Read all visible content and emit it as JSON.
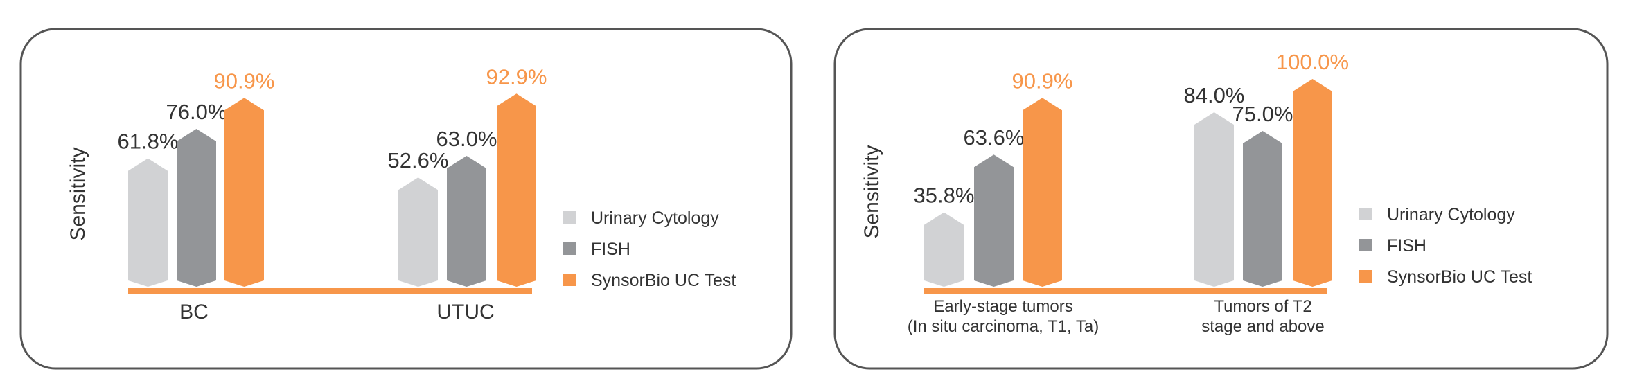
{
  "chart_data": [
    {
      "type": "bar",
      "ylabel": "Sensitivity",
      "categories": [
        "BC",
        "UTUC"
      ],
      "series": [
        {
          "name": "Urinary Cytology",
          "values": [
            61.8,
            52.6
          ],
          "labels": [
            "61.8%",
            "52.6%"
          ]
        },
        {
          "name": "FISH",
          "values": [
            76.0,
            63.0
          ],
          "labels": [
            "76.0%",
            "63.0%"
          ]
        },
        {
          "name": "SynsorBio UC Test",
          "values": [
            90.9,
            92.9
          ],
          "labels": [
            "90.9%",
            "92.9%"
          ]
        }
      ],
      "ylim": [
        0,
        100
      ],
      "legend": "right",
      "grid": false
    },
    {
      "type": "bar",
      "ylabel": "Sensitivity",
      "categories": [
        [
          "Early-stage tumors",
          "(In situ carcinoma, T1, Ta)"
        ],
        [
          "Tumors of T2",
          "stage and above"
        ]
      ],
      "series": [
        {
          "name": "Urinary Cytology",
          "values": [
            35.8,
            84.0
          ],
          "labels": [
            "35.8%",
            "84.0%"
          ]
        },
        {
          "name": "FISH",
          "values": [
            63.6,
            75.0
          ],
          "labels": [
            "63.6%",
            "75.0%"
          ]
        },
        {
          "name": "SynsorBio UC Test",
          "values": [
            90.9,
            100.0
          ],
          "labels": [
            "90.9%",
            "100.0%"
          ]
        }
      ],
      "ylim": [
        0,
        100
      ],
      "legend": "right",
      "grid": false
    }
  ],
  "colors": {
    "series": [
      "#d1d2d4",
      "#939598",
      "#f7964a"
    ],
    "baseline": "#f7964a",
    "frame": "#555555",
    "text": "#333333",
    "highlight_text": "#f7964a"
  }
}
